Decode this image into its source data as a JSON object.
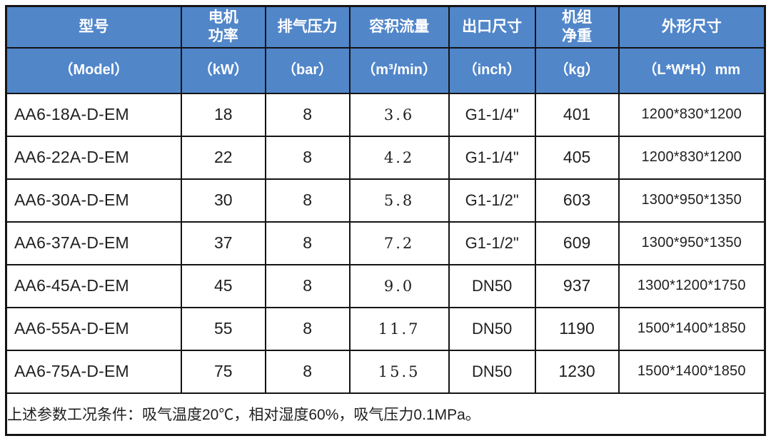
{
  "theme": {
    "header_bg": "#5186c9",
    "header_text": "#ffffff",
    "border_color": "#141414",
    "body_text": "#1f1f1f",
    "body_bg": "#ffffff"
  },
  "table": {
    "columns": [
      {
        "title": "型号",
        "unit": "（Model）"
      },
      {
        "title": "电机\n功率",
        "unit": "（kW）"
      },
      {
        "title": "排气压力",
        "unit": "（bar）"
      },
      {
        "title": "容积流量",
        "unit": "（m³/min）"
      },
      {
        "title": "出口尺寸",
        "unit": "（inch）"
      },
      {
        "title": "机组\n净重",
        "unit": "（kg）"
      },
      {
        "title": "外形尺寸",
        "unit": "（L*W*H）mm"
      }
    ],
    "rows": [
      {
        "model": "AA6-18A-D-EM",
        "power_kw": "18",
        "pressure_bar": "8",
        "flow_m3_min": "3.6",
        "outlet_size_inch": "G1-1/4\"",
        "net_weight_kg": "401",
        "dimensions_mm": "1200*830*1200"
      },
      {
        "model": "AA6-22A-D-EM",
        "power_kw": "22",
        "pressure_bar": "8",
        "flow_m3_min": "4.2",
        "outlet_size_inch": "G1-1/4\"",
        "net_weight_kg": "405",
        "dimensions_mm": "1200*830*1200"
      },
      {
        "model": "AA6-30A-D-EM",
        "power_kw": "30",
        "pressure_bar": "8",
        "flow_m3_min": "5.8",
        "outlet_size_inch": "G1-1/2\"",
        "net_weight_kg": "603",
        "dimensions_mm": "1300*950*1350"
      },
      {
        "model": "AA6-37A-D-EM",
        "power_kw": "37",
        "pressure_bar": "8",
        "flow_m3_min": "7.2",
        "outlet_size_inch": "G1-1/2\"",
        "net_weight_kg": "609",
        "dimensions_mm": "1300*950*1350"
      },
      {
        "model": "AA6-45A-D-EM",
        "power_kw": "45",
        "pressure_bar": "8",
        "flow_m3_min": "9.0",
        "outlet_size_inch": "DN50",
        "net_weight_kg": "937",
        "dimensions_mm": "1300*1200*1750"
      },
      {
        "model": "AA6-55A-D-EM",
        "power_kw": "55",
        "pressure_bar": "8",
        "flow_m3_min": "11.7",
        "outlet_size_inch": "DN50",
        "net_weight_kg": "1190",
        "dimensions_mm": "1500*1400*1850"
      },
      {
        "model": "AA6-75A-D-EM",
        "power_kw": "75",
        "pressure_bar": "8",
        "flow_m3_min": "15.5",
        "outlet_size_inch": "DN50",
        "net_weight_kg": "1230",
        "dimensions_mm": "1500*1400*1850"
      }
    ],
    "note": "上述参数工况条件：吸气温度20℃，相对湿度60%，吸气压力0.1MPa。"
  }
}
